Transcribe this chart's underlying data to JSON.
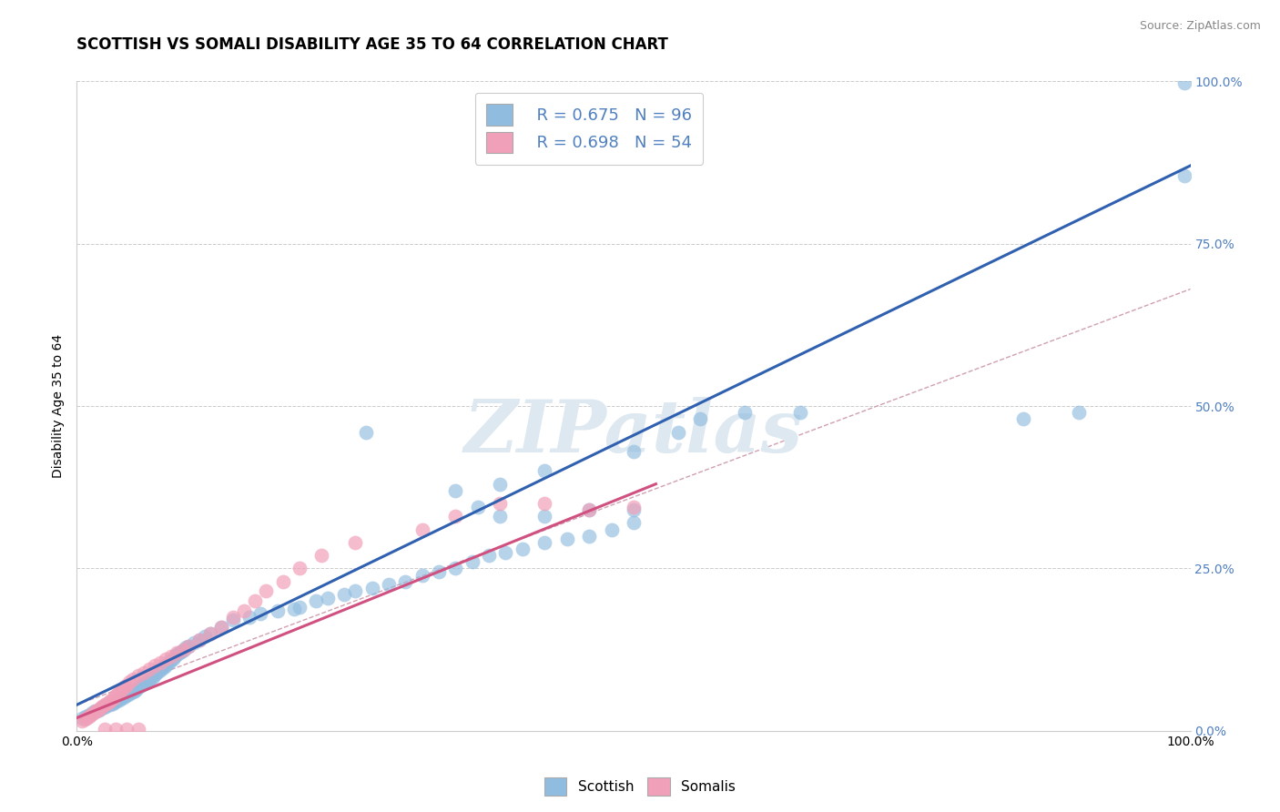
{
  "title": "SCOTTISH VS SOMALI DISABILITY AGE 35 TO 64 CORRELATION CHART",
  "source": "Source: ZipAtlas.com",
  "ylabel": "Disability Age 35 to 64",
  "xlim": [
    0.0,
    1.0
  ],
  "ylim": [
    0.0,
    1.0
  ],
  "ytick_positions": [
    0.0,
    0.25,
    0.5,
    0.75,
    1.0
  ],
  "ytick_labels": [
    "0.0%",
    "25.0%",
    "50.0%",
    "75.0%",
    "100.0%"
  ],
  "legend_entries": [
    {
      "label": "Scottish",
      "color": "#a8c8e8",
      "R": "0.675",
      "N": "96"
    },
    {
      "label": "Somalis",
      "color": "#f4b8c8",
      "R": "0.698",
      "N": "54"
    }
  ],
  "watermark": "ZIPatlas",
  "scottish_line_x": [
    0.0,
    1.0
  ],
  "scottish_line_y": [
    0.04,
    0.87
  ],
  "somali_line_x": [
    0.0,
    0.52
  ],
  "somali_line_y": [
    0.02,
    0.38
  ],
  "diagonal_line_x": [
    0.0,
    1.0
  ],
  "diagonal_line_y": [
    0.04,
    0.68
  ],
  "scatter_scottish_x": [
    0.005,
    0.008,
    0.01,
    0.012,
    0.014,
    0.016,
    0.018,
    0.02,
    0.022,
    0.024,
    0.026,
    0.028,
    0.03,
    0.032,
    0.034,
    0.036,
    0.038,
    0.04,
    0.042,
    0.044,
    0.046,
    0.048,
    0.05,
    0.052,
    0.054,
    0.056,
    0.058,
    0.06,
    0.062,
    0.064,
    0.066,
    0.068,
    0.07,
    0.072,
    0.074,
    0.076,
    0.078,
    0.08,
    0.082,
    0.084,
    0.086,
    0.088,
    0.09,
    0.092,
    0.094,
    0.096,
    0.098,
    0.1,
    0.105,
    0.11,
    0.115,
    0.12,
    0.13,
    0.14,
    0.155,
    0.165,
    0.18,
    0.195,
    0.2,
    0.215,
    0.225,
    0.24,
    0.25,
    0.265,
    0.28,
    0.295,
    0.31,
    0.325,
    0.34,
    0.355,
    0.37,
    0.385,
    0.4,
    0.42,
    0.44,
    0.46,
    0.48,
    0.5,
    0.34,
    0.36,
    0.26,
    0.38,
    0.42,
    0.5,
    0.54,
    0.56,
    0.6,
    0.65,
    0.85,
    0.9,
    0.38,
    0.42,
    0.46,
    0.5,
    0.995,
    0.995
  ],
  "scatter_scottish_y": [
    0.02,
    0.022,
    0.024,
    0.025,
    0.028,
    0.03,
    0.03,
    0.032,
    0.035,
    0.036,
    0.038,
    0.04,
    0.04,
    0.042,
    0.045,
    0.046,
    0.048,
    0.05,
    0.052,
    0.055,
    0.056,
    0.058,
    0.06,
    0.062,
    0.064,
    0.068,
    0.07,
    0.072,
    0.074,
    0.078,
    0.08,
    0.082,
    0.086,
    0.09,
    0.092,
    0.095,
    0.098,
    0.1,
    0.105,
    0.108,
    0.11,
    0.115,
    0.118,
    0.12,
    0.122,
    0.125,
    0.128,
    0.13,
    0.135,
    0.14,
    0.145,
    0.15,
    0.16,
    0.17,
    0.175,
    0.18,
    0.185,
    0.188,
    0.19,
    0.2,
    0.205,
    0.21,
    0.215,
    0.22,
    0.225,
    0.23,
    0.24,
    0.245,
    0.25,
    0.26,
    0.27,
    0.275,
    0.28,
    0.29,
    0.295,
    0.3,
    0.31,
    0.32,
    0.37,
    0.345,
    0.46,
    0.38,
    0.4,
    0.43,
    0.46,
    0.48,
    0.49,
    0.49,
    0.48,
    0.49,
    0.33,
    0.33,
    0.34,
    0.34,
    0.998,
    0.855
  ],
  "scatter_somali_x": [
    0.005,
    0.007,
    0.009,
    0.011,
    0.013,
    0.015,
    0.017,
    0.019,
    0.021,
    0.023,
    0.025,
    0.027,
    0.029,
    0.031,
    0.033,
    0.035,
    0.037,
    0.039,
    0.041,
    0.043,
    0.045,
    0.047,
    0.05,
    0.055,
    0.06,
    0.065,
    0.07,
    0.075,
    0.08,
    0.085,
    0.09,
    0.095,
    0.1,
    0.11,
    0.12,
    0.13,
    0.14,
    0.15,
    0.16,
    0.17,
    0.185,
    0.2,
    0.22,
    0.25,
    0.31,
    0.34,
    0.38,
    0.42,
    0.46,
    0.5,
    0.025,
    0.035,
    0.045,
    0.055
  ],
  "scatter_somali_y": [
    0.015,
    0.018,
    0.02,
    0.022,
    0.025,
    0.028,
    0.03,
    0.032,
    0.035,
    0.038,
    0.04,
    0.042,
    0.045,
    0.048,
    0.05,
    0.055,
    0.058,
    0.06,
    0.065,
    0.068,
    0.07,
    0.075,
    0.08,
    0.085,
    0.09,
    0.095,
    0.1,
    0.105,
    0.11,
    0.115,
    0.12,
    0.125,
    0.13,
    0.14,
    0.15,
    0.16,
    0.175,
    0.185,
    0.2,
    0.215,
    0.23,
    0.25,
    0.27,
    0.29,
    0.31,
    0.33,
    0.35,
    0.35,
    0.34,
    0.345,
    0.002,
    0.002,
    0.002,
    0.002
  ],
  "grid_color": "#cccccc",
  "scottish_dot_color": "#90bce0",
  "somali_dot_color": "#f0a0b8",
  "scottish_line_color": "#3060b0",
  "somali_line_color": "#d05080",
  "diagonal_line_color": "#d0a0b0",
  "bg_color": "#ffffff",
  "right_tick_color": "#5080c0",
  "watermark_color": "#dde8f0",
  "title_fontsize": 12,
  "label_fontsize": 10,
  "tick_fontsize": 10,
  "source_fontsize": 9
}
